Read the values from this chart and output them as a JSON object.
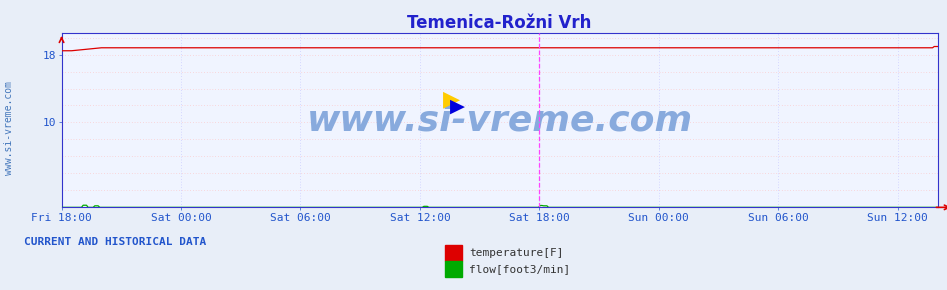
{
  "title": "Temenica-Rožni Vrh",
  "title_color": "#2222cc",
  "bg_color": "#e8eef8",
  "plot_bg_color": "#f0f4ff",
  "bottom_strip_color": "#aaaaaa",
  "grid_color_h": "#ffbbbb",
  "grid_color_v": "#bbbbff",
  "ylabel_values": [
    10,
    18
  ],
  "ylim": [
    0,
    20.5
  ],
  "xtick_labels": [
    "Fri 18:00",
    "Sat 00:00",
    "Sat 06:00",
    "Sat 12:00",
    "Sat 18:00",
    "Sun 00:00",
    "Sun 06:00",
    "Sun 12:00"
  ],
  "xtick_positions": [
    0,
    6,
    12,
    18,
    24,
    30,
    36,
    42
  ],
  "temp_value": 18.8,
  "temp_dip_start": 18.45,
  "temp_color": "#dd0000",
  "flow_color": "#00aa00",
  "vline_pos": 24,
  "vline_color": "#ff44ff",
  "watermark": "www.si-vreme.com",
  "watermark_color": "#88aadd",
  "side_label": "www.si-vreme.com",
  "legend_label1": "temperature[F]",
  "legend_label2": "flow[foot3/min]",
  "current_data_text": "CURRENT AND HISTORICAL DATA",
  "temp_color_legend": "#dd0000",
  "flow_color_legend": "#00aa00",
  "axis_color": "#3333cc",
  "tick_label_color": "#2255cc",
  "font_size_title": 12,
  "font_size_ticks": 8,
  "font_size_legend": 8,
  "font_size_watermark": 26,
  "font_size_side": 7,
  "font_size_current": 8
}
